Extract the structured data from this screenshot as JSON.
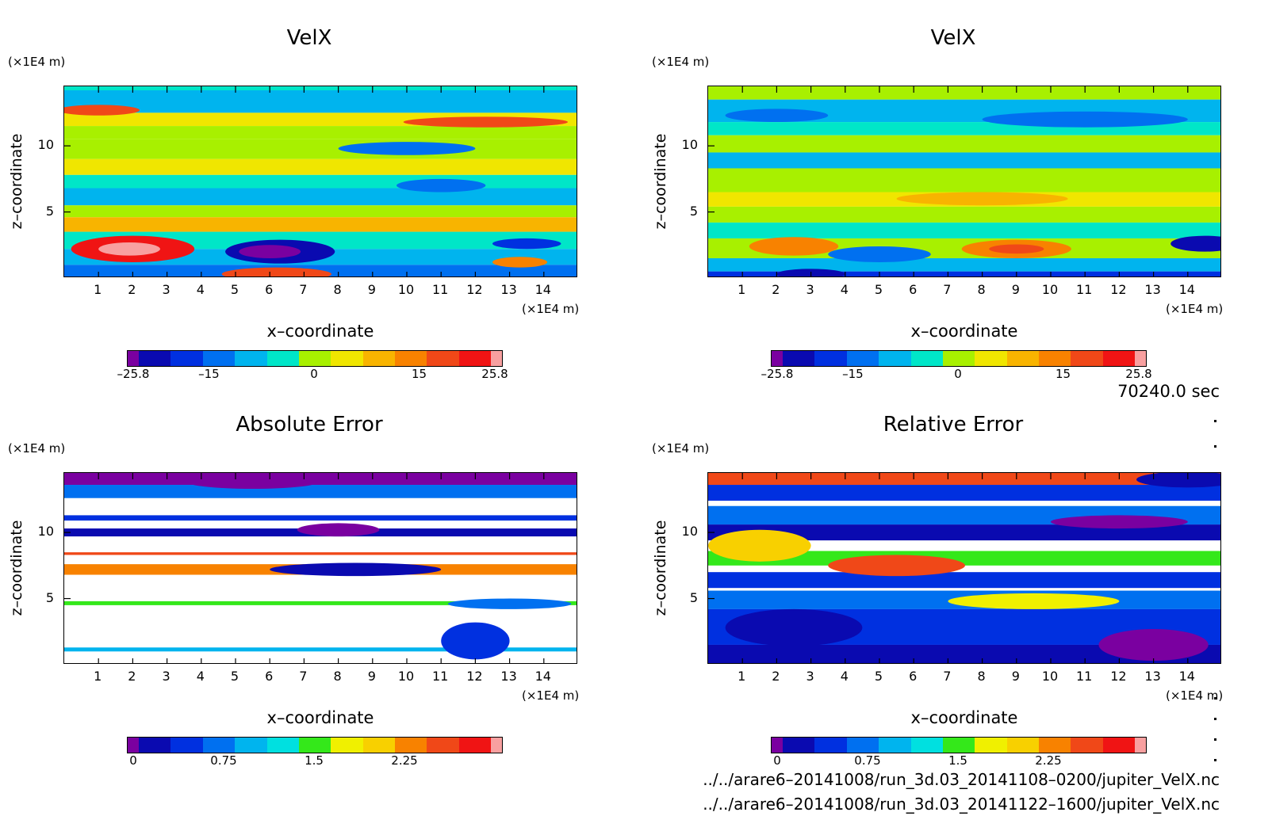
{
  "xticks": [
    "1",
    "2",
    "3",
    "4",
    "5",
    "6",
    "7",
    "8",
    "9",
    "10",
    "11",
    "12",
    "13",
    "14"
  ],
  "yticks": [
    "10",
    "5"
  ],
  "x_unit": "(×1E4 m)",
  "z_unit": "(×1E4 m)",
  "xlabel": "x–coordinate",
  "ylabel": "z–coordinate",
  "time_label": "70240.0 sec",
  "file_paths": [
    "../../arare6–20141008/run_3d.03_20141108–0200/jupiter_VelX.nc",
    "../../arare6–20141008/run_3d.03_20141122–1600/jupiter_VelX.nc"
  ],
  "velocity_palette": [
    "#7a00a0",
    "#0a0ab0",
    "#0030e0",
    "#0070f0",
    "#00b4ee",
    "#00e6c8",
    "#a8f000",
    "#f0e600",
    "#f8b400",
    "#f88200",
    "#f04818",
    "#f01414",
    "#f8a0a0"
  ],
  "error_palette": [
    "#7a00a0",
    "#0a0ab0",
    "#0030e0",
    "#0070f0",
    "#00b4ee",
    "#00e0e0",
    "#34e81a",
    "#f0f000",
    "#f8d000",
    "#f88200",
    "#f04818",
    "#f01414",
    "#f8a0a0"
  ],
  "chart_data": [
    {
      "type": "heatmap",
      "title": "VelX",
      "xlabel": "x–coordinate",
      "ylabel": "z–coordinate",
      "xlim": [
        0,
        15
      ],
      "ylim": [
        0,
        14.5
      ],
      "colorbar": {
        "ticks": [
          "–25.8",
          "–15",
          "0",
          "15",
          "25.8"
        ],
        "range": [
          -25.8,
          25.8
        ]
      },
      "bands": [
        {
          "z": [
            14.2,
            14.5
          ],
          "v": 5
        },
        {
          "z": [
            12.5,
            14.2
          ],
          "v": 4
        },
        {
          "z": [
            11.5,
            12.5
          ],
          "v": 7
        },
        {
          "z": [
            10.5,
            11.5
          ],
          "v": 6
        },
        {
          "z": [
            9.0,
            10.5
          ],
          "v": 6
        },
        {
          "z": [
            7.8,
            9.0
          ],
          "v": 7
        },
        {
          "z": [
            6.8,
            7.8
          ],
          "v": 5
        },
        {
          "z": [
            5.5,
            6.8
          ],
          "v": 4
        },
        {
          "z": [
            4.6,
            5.5
          ],
          "v": 6
        },
        {
          "z": [
            3.5,
            4.6
          ],
          "v": 8
        },
        {
          "z": [
            2.2,
            3.5
          ],
          "v": 5
        },
        {
          "z": [
            1.0,
            2.2
          ],
          "v": 4
        },
        {
          "z": [
            0,
            1.0
          ],
          "v": 3
        }
      ],
      "blobs": [
        {
          "x": 2,
          "z": 2.2,
          "rx": 1.8,
          "rz": 1.0,
          "v": 11
        },
        {
          "x": 1.9,
          "z": 2.2,
          "rx": 0.9,
          "rz": 0.5,
          "v": 12
        },
        {
          "x": 6.3,
          "z": 2.0,
          "rx": 1.6,
          "rz": 0.9,
          "v": 1
        },
        {
          "x": 6.0,
          "z": 2.0,
          "rx": 0.9,
          "rz": 0.5,
          "v": 0
        },
        {
          "x": 12.3,
          "z": 11.8,
          "rx": 2.4,
          "rz": 0.4,
          "v": 10
        },
        {
          "x": 11.0,
          "z": 7.0,
          "rx": 1.3,
          "rz": 0.5,
          "v": 3
        },
        {
          "x": 13.5,
          "z": 2.6,
          "rx": 1.0,
          "rz": 0.4,
          "v": 2
        },
        {
          "x": 13.3,
          "z": 1.2,
          "rx": 0.8,
          "rz": 0.4,
          "v": 9
        },
        {
          "x": 6.2,
          "z": 0.3,
          "rx": 1.6,
          "rz": 0.5,
          "v": 10
        },
        {
          "x": 10.0,
          "z": 9.8,
          "rx": 2.0,
          "rz": 0.5,
          "v": 3
        },
        {
          "x": 1.0,
          "z": 12.7,
          "rx": 1.2,
          "rz": 0.4,
          "v": 10
        }
      ]
    },
    {
      "type": "heatmap",
      "title": "VelX",
      "xlabel": "x–coordinate",
      "ylabel": "z–coordinate",
      "xlim": [
        0,
        15
      ],
      "ylim": [
        0,
        14.5
      ],
      "colorbar": {
        "ticks": [
          "–25.8",
          "–15",
          "0",
          "15",
          "25.8"
        ],
        "range": [
          -25.8,
          25.8
        ]
      },
      "bands": [
        {
          "z": [
            13.5,
            14.5
          ],
          "v": 6
        },
        {
          "z": [
            11.8,
            13.5
          ],
          "v": 4
        },
        {
          "z": [
            10.8,
            11.8
          ],
          "v": 5
        },
        {
          "z": [
            9.5,
            10.8
          ],
          "v": 6
        },
        {
          "z": [
            8.3,
            9.5
          ],
          "v": 4
        },
        {
          "z": [
            6.5,
            8.3
          ],
          "v": 6
        },
        {
          "z": [
            5.4,
            6.5
          ],
          "v": 7
        },
        {
          "z": [
            4.2,
            5.4
          ],
          "v": 6
        },
        {
          "z": [
            3.0,
            4.2
          ],
          "v": 5
        },
        {
          "z": [
            1.5,
            3.0
          ],
          "v": 6
        },
        {
          "z": [
            0.5,
            1.5
          ],
          "v": 4
        },
        {
          "z": [
            0,
            0.5
          ],
          "v": 2
        }
      ],
      "blobs": [
        {
          "x": 2.5,
          "z": 2.4,
          "rx": 1.3,
          "rz": 0.7,
          "v": 9
        },
        {
          "x": 9.0,
          "z": 2.2,
          "rx": 1.6,
          "rz": 0.7,
          "v": 9
        },
        {
          "x": 9.0,
          "z": 2.2,
          "rx": 0.8,
          "rz": 0.35,
          "v": 10
        },
        {
          "x": 14.5,
          "z": 2.6,
          "rx": 1.0,
          "rz": 0.6,
          "v": 1
        },
        {
          "x": 5.0,
          "z": 1.8,
          "rx": 1.5,
          "rz": 0.6,
          "v": 3
        },
        {
          "x": 3.0,
          "z": 0.3,
          "rx": 1.0,
          "rz": 0.4,
          "v": 1
        },
        {
          "x": 8.0,
          "z": 6.0,
          "rx": 2.5,
          "rz": 0.5,
          "v": 8
        },
        {
          "x": 11.0,
          "z": 12.0,
          "rx": 3.0,
          "rz": 0.6,
          "v": 3
        },
        {
          "x": 2.0,
          "z": 12.3,
          "rx": 1.5,
          "rz": 0.5,
          "v": 3
        }
      ]
    },
    {
      "type": "heatmap",
      "title": "Absolute Error",
      "xlabel": "x–coordinate",
      "ylabel": "z–coordinate",
      "xlim": [
        0,
        15
      ],
      "ylim": [
        0,
        14.5
      ],
      "colorbar": {
        "ticks": [
          "0",
          "0.75",
          "1.5",
          "2.25"
        ],
        "range": [
          0,
          3
        ]
      },
      "bands": [
        {
          "z": [
            13.6,
            14.5
          ],
          "v": 0
        },
        {
          "z": [
            12.6,
            13.6
          ],
          "v": 3
        },
        {
          "z": [
            10.9,
            11.3
          ],
          "v": 2
        },
        {
          "z": [
            9.7,
            10.3
          ],
          "v": 1
        },
        {
          "z": [
            8.3,
            8.5
          ],
          "v": 10
        },
        {
          "z": [
            6.8,
            7.6
          ],
          "v": 9
        },
        {
          "z": [
            4.5,
            4.8
          ],
          "v": 6
        },
        {
          "z": [
            1.0,
            1.3
          ],
          "v": 4
        }
      ],
      "blobs": [
        {
          "x": 8.5,
          "z": 7.2,
          "rx": 2.5,
          "rz": 0.5,
          "v": 1
        },
        {
          "x": 8.0,
          "z": 10.2,
          "rx": 1.2,
          "rz": 0.5,
          "v": 0
        },
        {
          "x": 12.0,
          "z": 1.8,
          "rx": 1.0,
          "rz": 1.4,
          "v": 2
        },
        {
          "x": 13.0,
          "z": 4.6,
          "rx": 1.8,
          "rz": 0.4,
          "v": 3
        },
        {
          "x": 5.5,
          "z": 13.9,
          "rx": 2.0,
          "rz": 0.6,
          "v": 0
        }
      ]
    },
    {
      "type": "heatmap",
      "title": "Relative Error",
      "xlabel": "x–coordinate",
      "ylabel": "z–coordinate",
      "xlim": [
        0,
        15
      ],
      "ylim": [
        0,
        14.5
      ],
      "colorbar": {
        "ticks": [
          "0",
          "0.75",
          "1.5",
          "2.25"
        ],
        "range": [
          0,
          3
        ]
      },
      "bands": [
        {
          "z": [
            13.6,
            14.5
          ],
          "v": 10
        },
        {
          "z": [
            12.4,
            13.6
          ],
          "v": 2
        },
        {
          "z": [
            10.6,
            12.0
          ],
          "v": 3
        },
        {
          "z": [
            9.4,
            10.6
          ],
          "v": 1
        },
        {
          "z": [
            7.5,
            8.6
          ],
          "v": 6
        },
        {
          "z": [
            5.8,
            7.0
          ],
          "v": 2
        },
        {
          "z": [
            4.2,
            5.6
          ],
          "v": 3
        },
        {
          "z": [
            1.5,
            4.2
          ],
          "v": 2
        },
        {
          "z": [
            0,
            1.5
          ],
          "v": 1
        }
      ],
      "blobs": [
        {
          "x": 2.5,
          "z": 2.8,
          "rx": 2.0,
          "rz": 1.4,
          "v": 1
        },
        {
          "x": 13.0,
          "z": 1.5,
          "rx": 1.6,
          "rz": 1.2,
          "v": 0
        },
        {
          "x": 5.5,
          "z": 7.5,
          "rx": 2.0,
          "rz": 0.8,
          "v": 10
        },
        {
          "x": 9.5,
          "z": 4.8,
          "rx": 2.5,
          "rz": 0.6,
          "v": 7
        },
        {
          "x": 1.5,
          "z": 9.0,
          "rx": 1.5,
          "rz": 1.2,
          "v": 8
        },
        {
          "x": 14.0,
          "z": 14.0,
          "rx": 1.5,
          "rz": 0.6,
          "v": 1
        },
        {
          "x": 12.0,
          "z": 10.8,
          "rx": 2.0,
          "rz": 0.5,
          "v": 0
        }
      ]
    }
  ]
}
